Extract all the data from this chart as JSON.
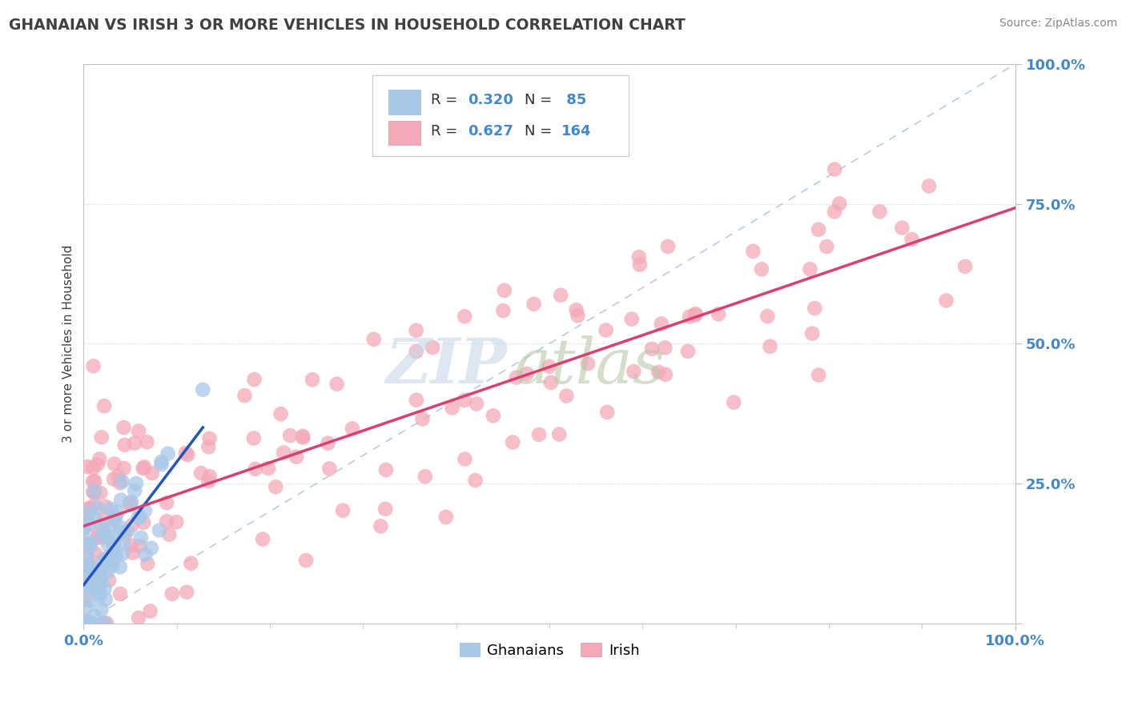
{
  "title": "GHANAIAN VS IRISH 3 OR MORE VEHICLES IN HOUSEHOLD CORRELATION CHART",
  "source_text": "Source: ZipAtlas.com",
  "ylabel": "3 or more Vehicles in Household",
  "legend_r1": "R = 0.320",
  "legend_n1": "N =  85",
  "legend_r2": "R = 0.627",
  "legend_n2": "N = 164",
  "ghanaian_color": "#a8c8e8",
  "irish_color": "#f4a8b8",
  "ghanaian_line_color": "#2255bb",
  "irish_line_color": "#d84070",
  "diagonal_color": "#b8cce0",
  "background_color": "#ffffff",
  "watermark_zip_color": "#c8d8e8",
  "watermark_atlas_color": "#b8c8a8",
  "grid_color": "#d0d0d0",
  "spine_color": "#c0c0c0",
  "tick_label_color": "#4488cc",
  "title_color": "#404040",
  "source_color": "#888888",
  "ylabel_color": "#404040"
}
